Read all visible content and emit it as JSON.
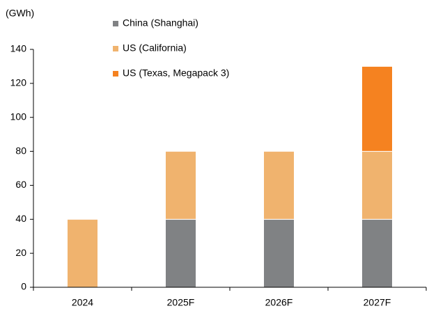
{
  "chart_data": {
    "type": "stacked_bar",
    "y_label": "(GWh)",
    "categories": [
      "2024",
      "2025F",
      "2026F",
      "2027F"
    ],
    "series": [
      {
        "name": "China (Shanghai)",
        "color": "#808284",
        "values": [
          0,
          40,
          40,
          40
        ]
      },
      {
        "name": "US (California)",
        "color": "#f0b36e",
        "values": [
          40,
          40,
          40,
          40
        ]
      },
      {
        "name": "US (Texas, Megapack 3)",
        "color": "#f58220",
        "values": [
          0,
          0,
          0,
          50
        ]
      }
    ],
    "ylim": [
      0,
      140
    ],
    "yticks": [
      0,
      20,
      40,
      60,
      80,
      100,
      120,
      140
    ],
    "legend": "top"
  }
}
